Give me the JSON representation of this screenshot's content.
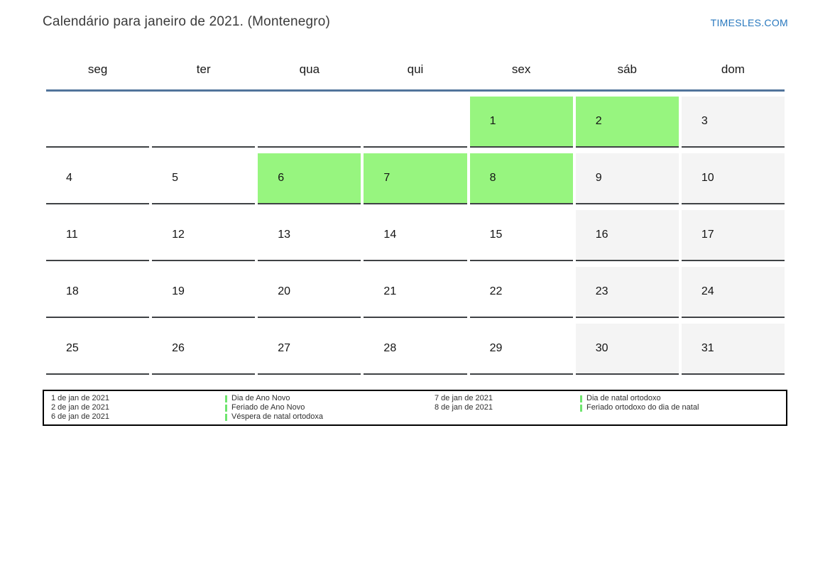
{
  "header": {
    "title": "Calendário para janeiro de 2021. (Montenegro)",
    "logo": "TIMESLES.COM"
  },
  "colors": {
    "holiday_green": "#97f57f",
    "weekend_gray": "#f4f4f4",
    "rule_blue": "#51749b",
    "logo_blue": "#2878be",
    "cell_border": "#3f4245",
    "marker_green": "#6fe56f"
  },
  "calendar": {
    "weekdays": [
      "seg",
      "ter",
      "qua",
      "qui",
      "sex",
      "sáb",
      "dom"
    ],
    "weeks": [
      [
        {
          "day": "",
          "type": "empty"
        },
        {
          "day": "",
          "type": "empty"
        },
        {
          "day": "",
          "type": "empty"
        },
        {
          "day": "",
          "type": "empty"
        },
        {
          "day": "1",
          "type": "holiday"
        },
        {
          "day": "2",
          "type": "holiday"
        },
        {
          "day": "3",
          "type": "weekend"
        }
      ],
      [
        {
          "day": "4",
          "type": "workday"
        },
        {
          "day": "5",
          "type": "workday"
        },
        {
          "day": "6",
          "type": "holiday"
        },
        {
          "day": "7",
          "type": "holiday"
        },
        {
          "day": "8",
          "type": "holiday"
        },
        {
          "day": "9",
          "type": "weekend"
        },
        {
          "day": "10",
          "type": "weekend"
        }
      ],
      [
        {
          "day": "11",
          "type": "workday"
        },
        {
          "day": "12",
          "type": "workday"
        },
        {
          "day": "13",
          "type": "workday"
        },
        {
          "day": "14",
          "type": "workday"
        },
        {
          "day": "15",
          "type": "workday"
        },
        {
          "day": "16",
          "type": "weekend"
        },
        {
          "day": "17",
          "type": "weekend"
        }
      ],
      [
        {
          "day": "18",
          "type": "workday"
        },
        {
          "day": "19",
          "type": "workday"
        },
        {
          "day": "20",
          "type": "workday"
        },
        {
          "day": "21",
          "type": "workday"
        },
        {
          "day": "22",
          "type": "workday"
        },
        {
          "day": "23",
          "type": "weekend"
        },
        {
          "day": "24",
          "type": "weekend"
        }
      ],
      [
        {
          "day": "25",
          "type": "workday"
        },
        {
          "day": "26",
          "type": "workday"
        },
        {
          "day": "27",
          "type": "workday"
        },
        {
          "day": "28",
          "type": "workday"
        },
        {
          "day": "29",
          "type": "workday"
        },
        {
          "day": "30",
          "type": "weekend"
        },
        {
          "day": "31",
          "type": "weekend"
        }
      ]
    ]
  },
  "legend": {
    "groups": [
      {
        "entries": [
          {
            "date": "1 de jan de 2021",
            "name": "Dia de Ano Novo"
          },
          {
            "date": "2 de jan de 2021",
            "name": "Feriado de Ano Novo"
          },
          {
            "date": "6 de jan de 2021",
            "name": "Véspera de natal ortodoxa"
          }
        ]
      },
      {
        "entries": [
          {
            "date": "7 de jan de 2021",
            "name": "Dia de natal ortodoxo"
          },
          {
            "date": "8 de jan de 2021",
            "name": "Feriado ortodoxo do dia de natal"
          }
        ]
      }
    ]
  }
}
